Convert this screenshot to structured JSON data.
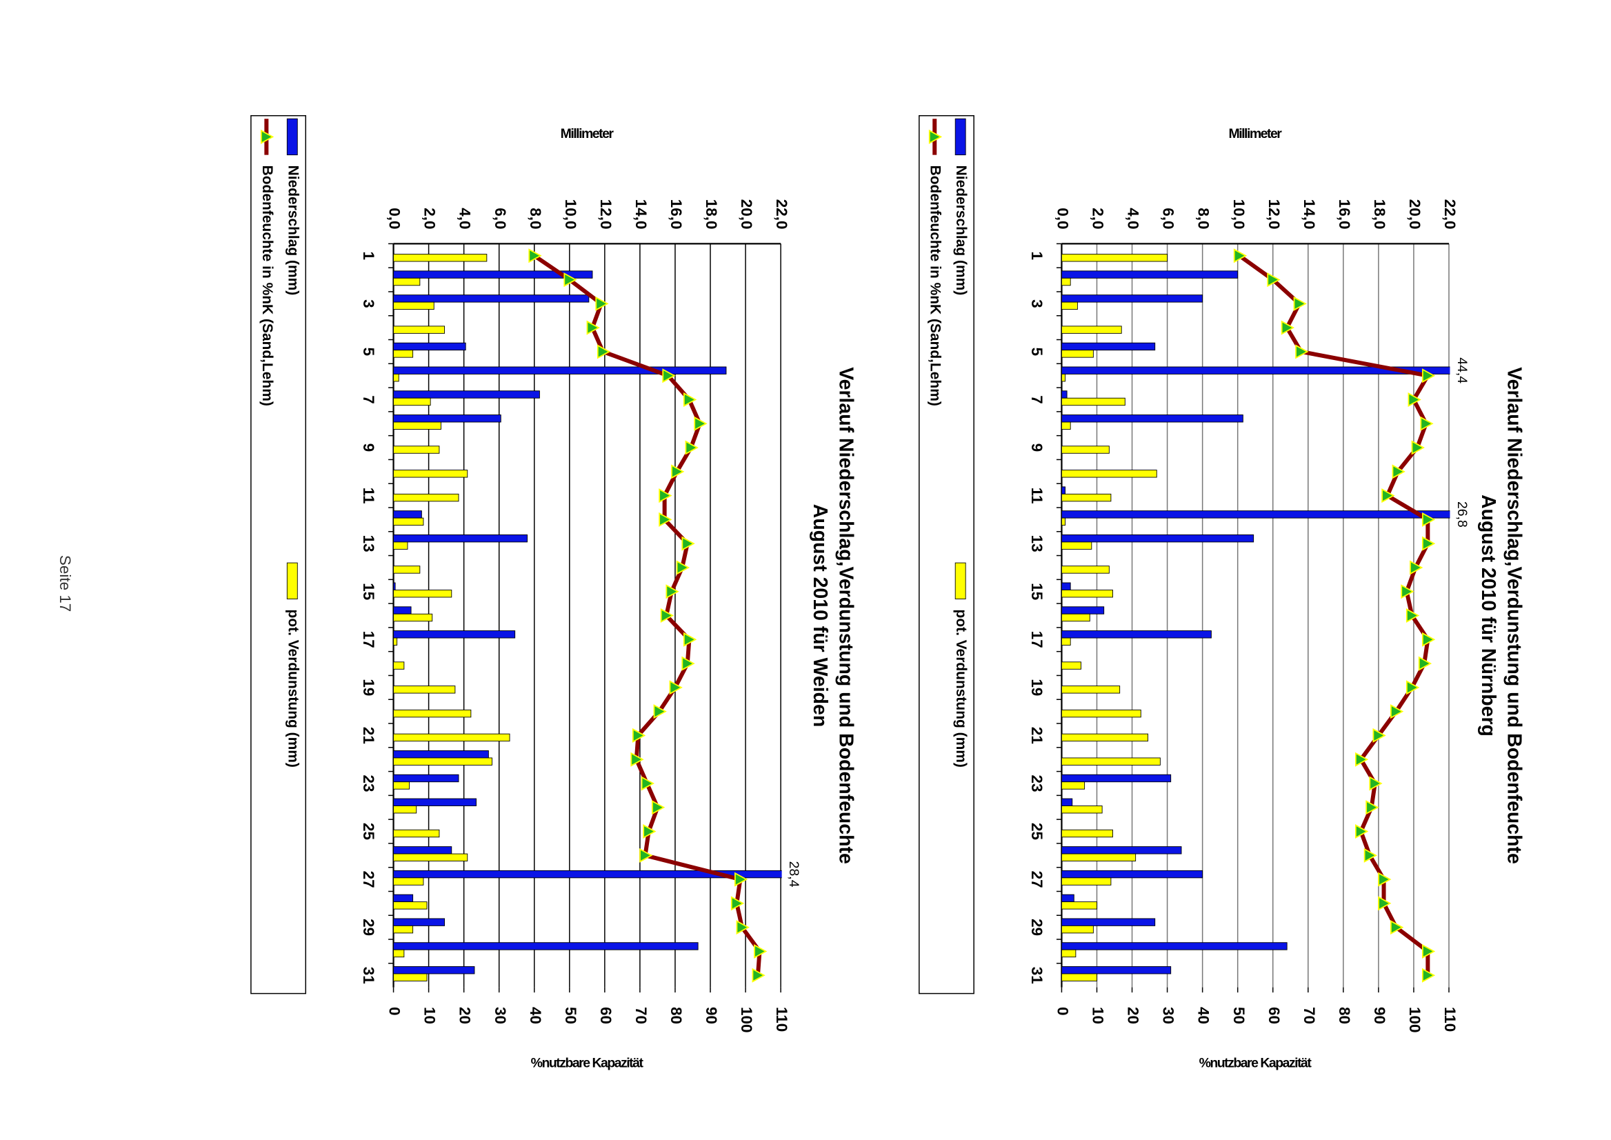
{
  "footer": "Seite 17",
  "chart_data": [
    {
      "type": "bar_line",
      "title": "Verlauf Niederschlag,Verdunstung und Bodenfeuchte",
      "subtitle": "August 2010 für Nürnberg",
      "ylabel": "Millimeter",
      "y2label": "%nutzbare Kapazität",
      "categories": [
        "1",
        null,
        "3",
        null,
        "5",
        null,
        "7",
        null,
        "9",
        null,
        "11",
        null,
        "13",
        null,
        "15",
        null,
        "17",
        null,
        "19",
        null,
        "21",
        null,
        "23",
        null,
        "25",
        null,
        "27",
        null,
        "29",
        null,
        "31"
      ],
      "ylim": [
        0,
        22
      ],
      "yticks": [
        {
          "value": 0,
          "label": "0,0"
        },
        {
          "value": 2,
          "label": "2,0"
        },
        {
          "value": 4,
          "label": "4,0"
        },
        {
          "value": 6,
          "label": "6,0"
        },
        {
          "value": 8,
          "label": "8,0"
        },
        {
          "value": 10,
          "label": "10,0"
        },
        {
          "value": 12,
          "label": "12,0"
        },
        {
          "value": 14,
          "label": "14,0"
        },
        {
          "value": 16,
          "label": "16,0"
        },
        {
          "value": 18,
          "label": "18,0"
        },
        {
          "value": 20,
          "label": "20,0"
        },
        {
          "value": 22,
          "label": "22,0"
        }
      ],
      "y2lim": [
        0,
        110
      ],
      "y2ticks": [
        0,
        10,
        20,
        30,
        40,
        50,
        60,
        70,
        80,
        90,
        100,
        110
      ],
      "grid": true,
      "legend": "bottom",
      "series": [
        {
          "name": "Niederschlag (mm)",
          "type": "bar",
          "color": "#0a14e6",
          "values": [
            0,
            10.0,
            8.0,
            0,
            5.3,
            44.4,
            0.3,
            10.3,
            0,
            0,
            0.2,
            26.8,
            10.9,
            0,
            0.5,
            2.4,
            8.5,
            0,
            0,
            0,
            0,
            0,
            6.2,
            0.6,
            0,
            6.8,
            8.0,
            0.7,
            5.3,
            12.8,
            6.2
          ],
          "value_labels": [
            null,
            null,
            null,
            null,
            null,
            "44,4",
            null,
            null,
            null,
            null,
            null,
            "26,8",
            null,
            null,
            null,
            null,
            null,
            null,
            null,
            null,
            null,
            null,
            null,
            null,
            null,
            null,
            null,
            null,
            null,
            null,
            null
          ]
        },
        {
          "name": "pot. Verdunstung (mm)",
          "type": "bar",
          "color": "#ffff00",
          "values": [
            6.0,
            0.5,
            0.9,
            3.4,
            1.8,
            0.2,
            3.6,
            0.5,
            2.7,
            5.4,
            2.8,
            0.2,
            1.7,
            2.7,
            2.9,
            1.6,
            0.5,
            1.1,
            3.3,
            4.5,
            4.9,
            5.6,
            1.3,
            2.3,
            2.9,
            4.2,
            2.8,
            2.0,
            1.8,
            0.8,
            2.0
          ]
        },
        {
          "name": "Bodenfeuchte in %nK (Sand,Lehm)",
          "type": "line",
          "axis": "y2",
          "color": "#8b0000",
          "marker_color": "#22b422",
          "values": [
            50.5,
            60,
            67.5,
            64,
            68,
            104,
            100,
            103.5,
            101,
            95.5,
            92.5,
            104,
            104,
            100.5,
            98,
            99.5,
            104,
            103,
            99.5,
            95,
            90,
            85,
            89,
            88,
            85,
            87.5,
            91.5,
            91.5,
            95,
            104,
            104
          ]
        }
      ]
    },
    {
      "type": "bar_line",
      "title": "Verlauf Niederschlag,Verdunstung und Bodenfeuchte",
      "subtitle": "August 2010 für Weiden",
      "ylabel": "Millimeter",
      "y2label": "%nutzbare Kapazität",
      "categories": [
        "1",
        null,
        "3",
        null,
        "5",
        null,
        "7",
        null,
        "9",
        null,
        "11",
        null,
        "13",
        null,
        "15",
        null,
        "17",
        null,
        "19",
        null,
        "21",
        null,
        "23",
        null,
        "25",
        null,
        "27",
        null,
        "29",
        null,
        "31"
      ],
      "ylim": [
        0,
        22
      ],
      "yticks": [
        {
          "value": 0,
          "label": "0,0"
        },
        {
          "value": 2,
          "label": "2,0"
        },
        {
          "value": 4,
          "label": "4,0"
        },
        {
          "value": 6,
          "label": "6,0"
        },
        {
          "value": 8,
          "label": "8,0"
        },
        {
          "value": 10,
          "label": "10,0"
        },
        {
          "value": 12,
          "label": "12,0"
        },
        {
          "value": 14,
          "label": "14,0"
        },
        {
          "value": 16,
          "label": "16,0"
        },
        {
          "value": 18,
          "label": "18,0"
        },
        {
          "value": 20,
          "label": "20,0"
        },
        {
          "value": 22,
          "label": "22,0"
        }
      ],
      "y2lim": [
        0,
        110
      ],
      "y2ticks": [
        0,
        10,
        20,
        30,
        40,
        50,
        60,
        70,
        80,
        90,
        100,
        110
      ],
      "grid": true,
      "legend": "bottom",
      "series": [
        {
          "name": "Niederschlag (mm)",
          "type": "bar",
          "color": "#0a14e6",
          "values": [
            0,
            11.3,
            11.1,
            0,
            4.1,
            18.9,
            8.3,
            6.1,
            0,
            0,
            0,
            1.6,
            7.6,
            0,
            0.1,
            1.0,
            6.9,
            0,
            0,
            0,
            0,
            5.4,
            3.7,
            4.7,
            0,
            3.3,
            28.4,
            1.1,
            2.9,
            17.3,
            4.6
          ],
          "value_labels": [
            null,
            null,
            null,
            null,
            null,
            null,
            null,
            null,
            null,
            null,
            null,
            null,
            null,
            null,
            null,
            null,
            null,
            null,
            null,
            null,
            null,
            null,
            null,
            null,
            null,
            null,
            "28,4",
            null,
            null,
            null,
            null
          ]
        },
        {
          "name": "pot. Verdunstung (mm)",
          "type": "bar",
          "color": "#ffff00",
          "values": [
            5.3,
            1.5,
            2.3,
            2.9,
            1.1,
            0.3,
            2.1,
            2.7,
            2.6,
            4.2,
            3.7,
            1.7,
            0.8,
            1.5,
            3.3,
            2.2,
            0.2,
            0.6,
            3.5,
            4.4,
            6.6,
            5.6,
            0.9,
            1.3,
            2.6,
            4.2,
            1.7,
            1.9,
            1.1,
            0.6,
            1.9
          ]
        },
        {
          "name": "Bodenfeuchte in %nK (Sand,Lehm)",
          "type": "line",
          "axis": "y2",
          "color": "#8b0000",
          "marker_color": "#22b422",
          "values": [
            40,
            50,
            59,
            56.5,
            59.5,
            78,
            84,
            87,
            84.5,
            80.5,
            77,
            77,
            83.5,
            82,
            79,
            77.5,
            84,
            83.5,
            80,
            75.5,
            69.5,
            69,
            72,
            75,
            72.5,
            71.5,
            98.5,
            97.5,
            99,
            104,
            103.5
          ]
        }
      ]
    }
  ]
}
